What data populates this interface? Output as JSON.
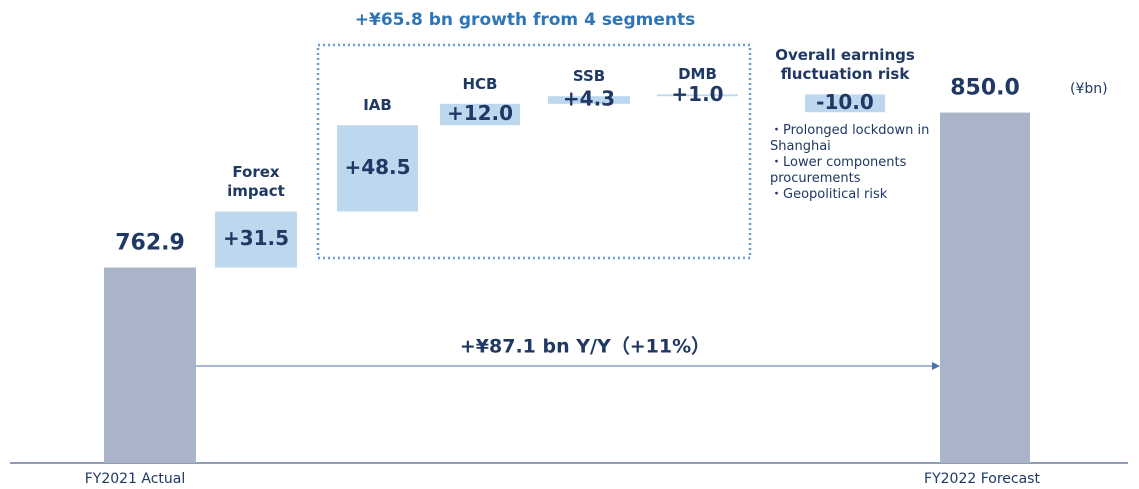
{
  "chart_data": {
    "type": "waterfall",
    "categories": [
      "FY2021 Actual",
      "Forex impact",
      "IAB",
      "HCB",
      "SSB",
      "DMB",
      "Overall earnings fluctuation risk",
      "FY2022 Forecast"
    ],
    "values": [
      762.9,
      31.5,
      48.5,
      12.0,
      4.3,
      1.0,
      -10.0,
      850.0
    ],
    "value_labels": [
      "762.9",
      "+31.5",
      "+48.5",
      "+12.0",
      "+4.3",
      "+1.0",
      "-10.0",
      "850.0"
    ],
    "total_color": "#aab4c8",
    "delta_color": "#bdd7ee",
    "ylim": [
      653,
      870
    ],
    "unit": "(¥bn)",
    "bracket_title": "+¥65.8 bn growth from 4 segments",
    "arrow_label": "+¥87.1 bn Y/Y（+11%）",
    "notes": [
      "・Prolonged lockdown in Shanghai",
      "・Lower components procurements",
      "・Geopolitical risk"
    ]
  }
}
